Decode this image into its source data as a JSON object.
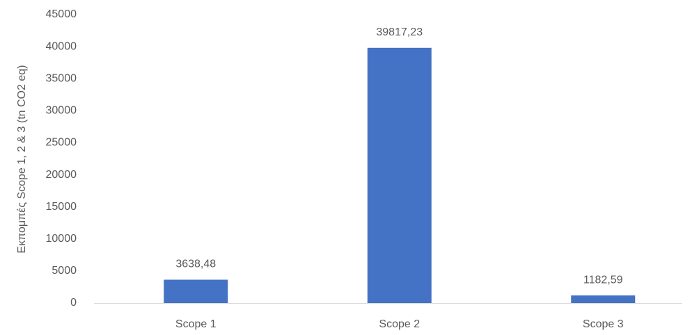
{
  "chart_data": {
    "type": "bar",
    "y_label": "Εκπομπές Scope 1, 2 & 3 (tn CO2 eq)",
    "categories": [
      "Scope 1",
      "Scope 2",
      "Scope 3"
    ],
    "values": [
      3638.48,
      39817.23,
      1182.59
    ],
    "value_labels": [
      "3638,48",
      "39817,23",
      "1182,59"
    ],
    "color": "#4472c4",
    "ylim": [
      0,
      45000
    ],
    "yticks": [
      0,
      5000,
      10000,
      15000,
      20000,
      25000,
      30000,
      35000,
      40000,
      45000
    ],
    "grid": false
  }
}
